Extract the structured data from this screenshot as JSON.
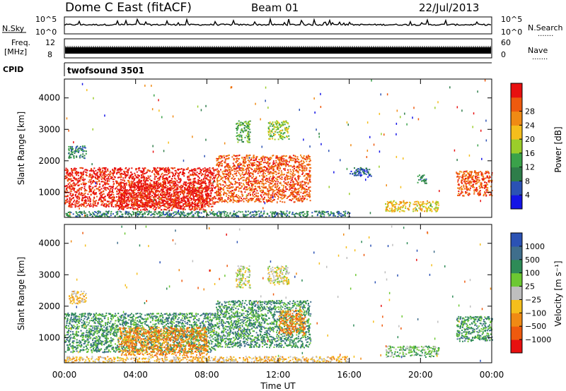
{
  "header": {
    "station": "Dome C East (fitACF)",
    "beam": "Beam 01",
    "date": "22/Jul/2013"
  },
  "left_labels": {
    "nsky": "N.Sky",
    "freq": "Freq.",
    "mhz": "[MHz]",
    "cpid": "CPID"
  },
  "right_labels": {
    "nsearch": "N.Search",
    "nave": "Nave",
    "dots": "......."
  },
  "noise_panel": {
    "ytick_top": "10^5",
    "ytick_bottom": "10^0",
    "rtick_top": "10^5",
    "rtick_bottom": "10^0"
  },
  "freq_panel": {
    "ytick_top": "12",
    "ytick_bottom": "8",
    "rtick_top": "60",
    "rtick_bottom": "0"
  },
  "cpid_text": "twofsound 3501",
  "colors": {
    "power": [
      "#1414e6",
      "#2b52b4",
      "#2e7d4a",
      "#3aa24a",
      "#9bcd2a",
      "#f5be1c",
      "#f08a14",
      "#ee5a0e",
      "#e81010"
    ],
    "velocity": [
      "#e81010",
      "#ee5a0e",
      "#f08a14",
      "#f5be1c",
      "#bebebe",
      "#6cc832",
      "#2e8b57",
      "#3f6e8c",
      "#2b52b4"
    ]
  },
  "chart_data": [
    {
      "type": "heatmap",
      "panel": "power",
      "ylabel": "Slant Range [km]",
      "xlabel": "",
      "x_ticks": [
        "00:00",
        "04:00",
        "08:00",
        "12:00",
        "16:00",
        "20:00",
        "00:00"
      ],
      "xlim_hours": [
        0,
        24
      ],
      "y_ticks": [
        1000,
        2000,
        3000,
        4000
      ],
      "ylim": [
        200,
        4600
      ],
      "colorbar_label": "Power [dB]",
      "colorbar_ticks": [
        "4",
        "8",
        "12",
        "16",
        "20",
        "24",
        "28"
      ],
      "regions": [
        {
          "t0": 0.0,
          "t1": 8.5,
          "r0": 550,
          "r1": 1800,
          "level": 8
        },
        {
          "t0": 3.0,
          "t1": 8.0,
          "r0": 450,
          "r1": 1350,
          "level": 8
        },
        {
          "t0": 8.5,
          "t1": 13.8,
          "r0": 700,
          "r1": 2200,
          "level": 7
        },
        {
          "t0": 0.2,
          "t1": 1.2,
          "r0": 2100,
          "r1": 2500,
          "level": 2
        },
        {
          "t0": 9.6,
          "t1": 10.4,
          "r0": 2600,
          "r1": 3300,
          "level": 3
        },
        {
          "t0": 11.4,
          "t1": 12.6,
          "r0": 2700,
          "r1": 3300,
          "level": 4
        },
        {
          "t0": 0.0,
          "t1": 16.0,
          "r0": 230,
          "r1": 420,
          "level": 2
        },
        {
          "t0": 18.0,
          "t1": 21.0,
          "r0": 400,
          "r1": 750,
          "level": 5
        },
        {
          "t0": 22.0,
          "t1": 24.0,
          "r0": 900,
          "r1": 1700,
          "level": 7
        },
        {
          "t0": 16.0,
          "t1": 17.2,
          "r0": 1500,
          "r1": 1800,
          "level": 1
        },
        {
          "t0": 19.8,
          "t1": 20.3,
          "r0": 1300,
          "r1": 1600,
          "level": 2
        }
      ]
    },
    {
      "type": "heatmap",
      "panel": "velocity",
      "ylabel": "Slant Range [km]",
      "xlabel": "Time UT",
      "x_ticks": [
        "00:00",
        "04:00",
        "08:00",
        "12:00",
        "16:00",
        "20:00",
        "00:00"
      ],
      "xlim_hours": [
        0,
        24
      ],
      "y_ticks": [
        1000,
        2000,
        3000,
        4000
      ],
      "ylim": [
        200,
        4600
      ],
      "colorbar_label": "Velocity [m s⁻¹]",
      "colorbar_ticks": [
        "1000",
        "500",
        "100",
        "25",
        "−25",
        "−100",
        "−500",
        "−1000"
      ],
      "regions": [
        {
          "t0": 0.0,
          "t1": 8.5,
          "r0": 550,
          "r1": 1800,
          "level": 6
        },
        {
          "t0": 3.0,
          "t1": 8.0,
          "r0": 450,
          "r1": 1350,
          "level": 2
        },
        {
          "t0": 8.5,
          "t1": 13.8,
          "r0": 700,
          "r1": 2200,
          "level": 6
        },
        {
          "t0": 0.2,
          "t1": 1.2,
          "r0": 2100,
          "r1": 2500,
          "level": 3
        },
        {
          "t0": 9.6,
          "t1": 10.4,
          "r0": 2600,
          "r1": 3300,
          "level": 4
        },
        {
          "t0": 11.4,
          "t1": 12.6,
          "r0": 2700,
          "r1": 3300,
          "level": 4
        },
        {
          "t0": 0.0,
          "t1": 16.0,
          "r0": 230,
          "r1": 420,
          "level": 3
        },
        {
          "t0": 18.0,
          "t1": 21.0,
          "r0": 400,
          "r1": 750,
          "level": 5
        },
        {
          "t0": 22.0,
          "t1": 24.0,
          "r0": 900,
          "r1": 1700,
          "level": 6
        },
        {
          "t0": 12.0,
          "t1": 13.5,
          "r0": 1100,
          "r1": 1900,
          "level": 2
        }
      ]
    }
  ]
}
